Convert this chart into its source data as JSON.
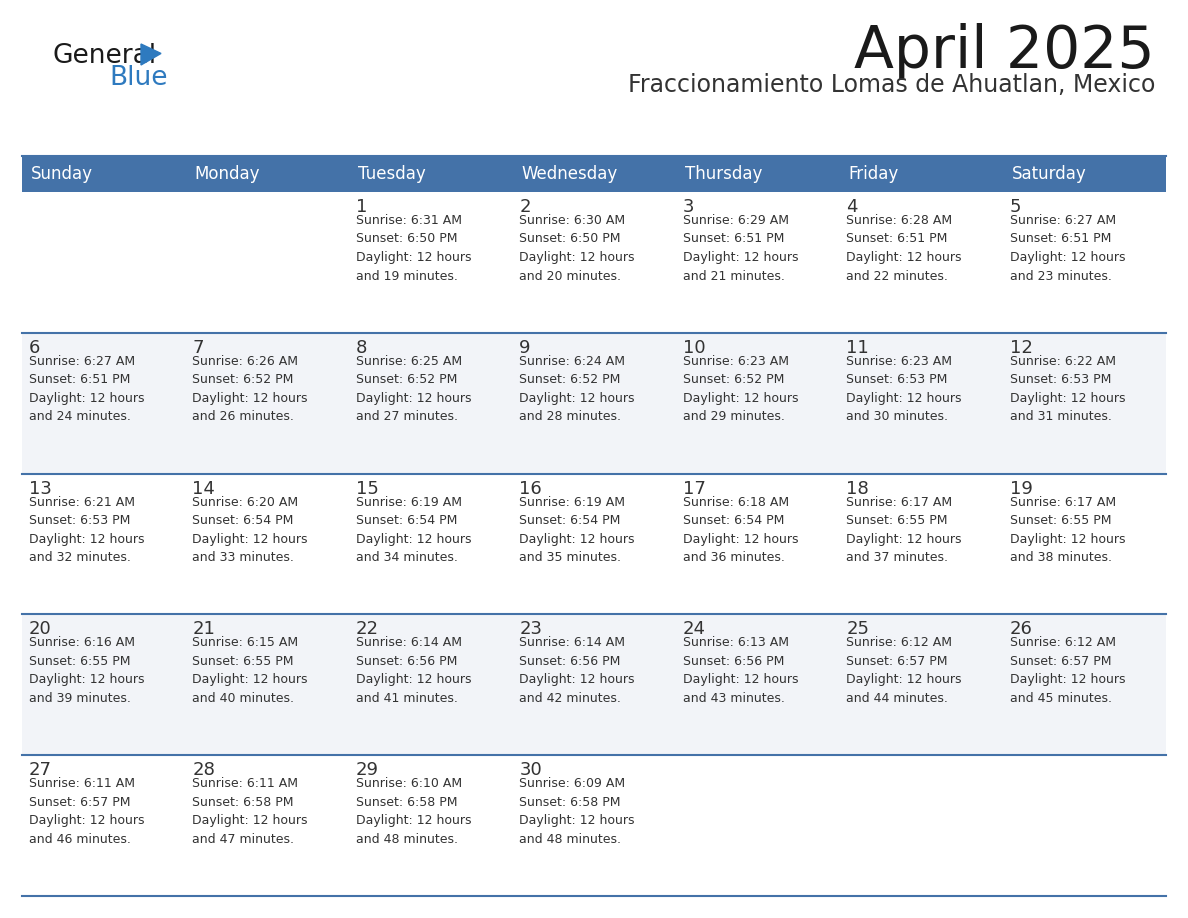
{
  "title": "April 2025",
  "subtitle": "Fraccionamiento Lomas de Ahuatlan, Mexico",
  "header_bg": "#4472a8",
  "header_text": "#ffffff",
  "row_bg_light": "#f2f4f8",
  "row_bg_white": "#ffffff",
  "cell_text": "#333333",
  "border_color": "#4472a8",
  "days_of_week": [
    "Sunday",
    "Monday",
    "Tuesday",
    "Wednesday",
    "Thursday",
    "Friday",
    "Saturday"
  ],
  "weeks": [
    [
      {
        "day": "",
        "info": ""
      },
      {
        "day": "",
        "info": ""
      },
      {
        "day": "1",
        "info": "Sunrise: 6:31 AM\nSunset: 6:50 PM\nDaylight: 12 hours\nand 19 minutes."
      },
      {
        "day": "2",
        "info": "Sunrise: 6:30 AM\nSunset: 6:50 PM\nDaylight: 12 hours\nand 20 minutes."
      },
      {
        "day": "3",
        "info": "Sunrise: 6:29 AM\nSunset: 6:51 PM\nDaylight: 12 hours\nand 21 minutes."
      },
      {
        "day": "4",
        "info": "Sunrise: 6:28 AM\nSunset: 6:51 PM\nDaylight: 12 hours\nand 22 minutes."
      },
      {
        "day": "5",
        "info": "Sunrise: 6:27 AM\nSunset: 6:51 PM\nDaylight: 12 hours\nand 23 minutes."
      }
    ],
    [
      {
        "day": "6",
        "info": "Sunrise: 6:27 AM\nSunset: 6:51 PM\nDaylight: 12 hours\nand 24 minutes."
      },
      {
        "day": "7",
        "info": "Sunrise: 6:26 AM\nSunset: 6:52 PM\nDaylight: 12 hours\nand 26 minutes."
      },
      {
        "day": "8",
        "info": "Sunrise: 6:25 AM\nSunset: 6:52 PM\nDaylight: 12 hours\nand 27 minutes."
      },
      {
        "day": "9",
        "info": "Sunrise: 6:24 AM\nSunset: 6:52 PM\nDaylight: 12 hours\nand 28 minutes."
      },
      {
        "day": "10",
        "info": "Sunrise: 6:23 AM\nSunset: 6:52 PM\nDaylight: 12 hours\nand 29 minutes."
      },
      {
        "day": "11",
        "info": "Sunrise: 6:23 AM\nSunset: 6:53 PM\nDaylight: 12 hours\nand 30 minutes."
      },
      {
        "day": "12",
        "info": "Sunrise: 6:22 AM\nSunset: 6:53 PM\nDaylight: 12 hours\nand 31 minutes."
      }
    ],
    [
      {
        "day": "13",
        "info": "Sunrise: 6:21 AM\nSunset: 6:53 PM\nDaylight: 12 hours\nand 32 minutes."
      },
      {
        "day": "14",
        "info": "Sunrise: 6:20 AM\nSunset: 6:54 PM\nDaylight: 12 hours\nand 33 minutes."
      },
      {
        "day": "15",
        "info": "Sunrise: 6:19 AM\nSunset: 6:54 PM\nDaylight: 12 hours\nand 34 minutes."
      },
      {
        "day": "16",
        "info": "Sunrise: 6:19 AM\nSunset: 6:54 PM\nDaylight: 12 hours\nand 35 minutes."
      },
      {
        "day": "17",
        "info": "Sunrise: 6:18 AM\nSunset: 6:54 PM\nDaylight: 12 hours\nand 36 minutes."
      },
      {
        "day": "18",
        "info": "Sunrise: 6:17 AM\nSunset: 6:55 PM\nDaylight: 12 hours\nand 37 minutes."
      },
      {
        "day": "19",
        "info": "Sunrise: 6:17 AM\nSunset: 6:55 PM\nDaylight: 12 hours\nand 38 minutes."
      }
    ],
    [
      {
        "day": "20",
        "info": "Sunrise: 6:16 AM\nSunset: 6:55 PM\nDaylight: 12 hours\nand 39 minutes."
      },
      {
        "day": "21",
        "info": "Sunrise: 6:15 AM\nSunset: 6:55 PM\nDaylight: 12 hours\nand 40 minutes."
      },
      {
        "day": "22",
        "info": "Sunrise: 6:14 AM\nSunset: 6:56 PM\nDaylight: 12 hours\nand 41 minutes."
      },
      {
        "day": "23",
        "info": "Sunrise: 6:14 AM\nSunset: 6:56 PM\nDaylight: 12 hours\nand 42 minutes."
      },
      {
        "day": "24",
        "info": "Sunrise: 6:13 AM\nSunset: 6:56 PM\nDaylight: 12 hours\nand 43 minutes."
      },
      {
        "day": "25",
        "info": "Sunrise: 6:12 AM\nSunset: 6:57 PM\nDaylight: 12 hours\nand 44 minutes."
      },
      {
        "day": "26",
        "info": "Sunrise: 6:12 AM\nSunset: 6:57 PM\nDaylight: 12 hours\nand 45 minutes."
      }
    ],
    [
      {
        "day": "27",
        "info": "Sunrise: 6:11 AM\nSunset: 6:57 PM\nDaylight: 12 hours\nand 46 minutes."
      },
      {
        "day": "28",
        "info": "Sunrise: 6:11 AM\nSunset: 6:58 PM\nDaylight: 12 hours\nand 47 minutes."
      },
      {
        "day": "29",
        "info": "Sunrise: 6:10 AM\nSunset: 6:58 PM\nDaylight: 12 hours\nand 48 minutes."
      },
      {
        "day": "30",
        "info": "Sunrise: 6:09 AM\nSunset: 6:58 PM\nDaylight: 12 hours\nand 48 minutes."
      },
      {
        "day": "",
        "info": ""
      },
      {
        "day": "",
        "info": ""
      },
      {
        "day": "",
        "info": ""
      }
    ]
  ],
  "logo_general_color": "#1a1a1a",
  "logo_blue_color": "#2e7abf",
  "triangle_color": "#2e7abf",
  "title_fontsize": 42,
  "subtitle_fontsize": 17,
  "header_fontsize": 12,
  "day_num_fontsize": 13,
  "cell_info_fontsize": 9
}
